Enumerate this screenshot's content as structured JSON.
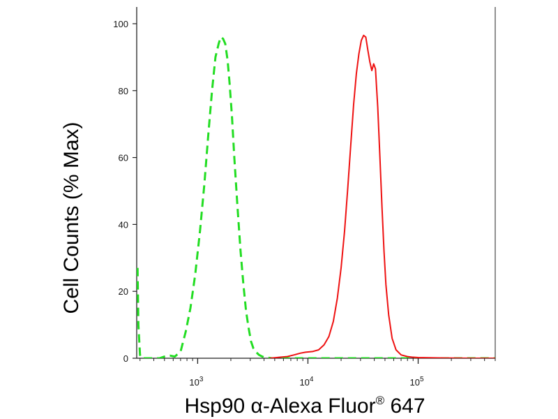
{
  "chart_data": {
    "type": "line",
    "xlabel": "Hsp90 α-Alexa Fluor",
    "xlabel_superscript": "®",
    "xlabel_suffix": " 647",
    "ylabel": "Cell Counts (% Max)",
    "x_scale": "log",
    "xlim": [
      280,
      500000
    ],
    "ylim": [
      0,
      105
    ],
    "x_ticks": [
      {
        "base": "10",
        "exp": "3",
        "value": 1000
      },
      {
        "base": "10",
        "exp": "4",
        "value": 10000
      },
      {
        "base": "10",
        "exp": "5",
        "value": 100000
      }
    ],
    "y_ticks": [
      {
        "label": "0",
        "value": 0
      },
      {
        "label": "20",
        "value": 20
      },
      {
        "label": "40",
        "value": 40
      },
      {
        "label": "60",
        "value": 60
      },
      {
        "label": "80",
        "value": 80
      },
      {
        "label": "100",
        "value": 100
      }
    ],
    "grid": false,
    "series": [
      {
        "color": "#22dd22",
        "line_style": "dashed",
        "x": [
          285,
          290,
          300,
          310,
          330,
          350,
          400,
          450,
          500,
          560,
          620,
          700,
          780,
          860,
          950,
          1050,
          1150,
          1250,
          1350,
          1450,
          1550,
          1620,
          1700,
          1780,
          1870,
          1950,
          2050,
          2150,
          2300,
          2450,
          2600,
          2750,
          2900,
          3050,
          3200,
          3400,
          3600,
          3800,
          4000,
          4300,
          4700,
          5500,
          7000,
          10000,
          20000,
          50000,
          100000,
          300000,
          500000
        ],
        "y": [
          27,
          10,
          1,
          0,
          0,
          0,
          0,
          0,
          0.5,
          0.8,
          0.5,
          2,
          8,
          15,
          25,
          38,
          52,
          67,
          80,
          90,
          94,
          96,
          95.5,
          94,
          89,
          82,
          72,
          60,
          45,
          32,
          22,
          14,
          9,
          5,
          3,
          1.8,
          1,
          0.6,
          0.3,
          0.2,
          0,
          0,
          0,
          0,
          0,
          0,
          0,
          0,
          0
        ]
      },
      {
        "color": "#ee1111",
        "line_style": "solid",
        "x": [
          4500,
          5500,
          6500,
          7500,
          8500,
          9500,
          11000,
          12500,
          14000,
          15500,
          17000,
          18500,
          20000,
          21500,
          23000,
          24500,
          26000,
          27500,
          29000,
          30500,
          32000,
          33500,
          35000,
          36500,
          38000,
          39500,
          41000,
          43000,
          45000,
          47000,
          49000,
          51000,
          54000,
          58000,
          63000,
          70000,
          80000,
          90000,
          100000,
          150000,
          300000,
          500000
        ],
        "y": [
          0,
          0.3,
          0.5,
          1,
          1.5,
          1.8,
          2,
          2.5,
          4,
          6.5,
          11,
          18,
          27,
          38,
          51,
          64,
          76,
          85,
          91,
          95,
          96.5,
          96,
          92,
          88.5,
          86,
          88,
          86.5,
          75,
          60,
          45,
          32,
          22,
          13,
          6,
          2.5,
          1,
          0.5,
          0.3,
          0.2,
          0.1,
          0,
          0
        ]
      }
    ]
  }
}
